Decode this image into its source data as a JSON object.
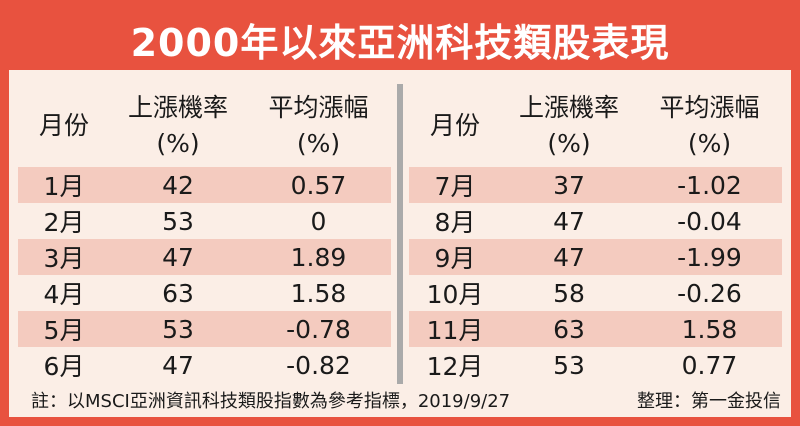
{
  "title": "2000年以來亞洲科技類股表現",
  "chart_data": {
    "type": "table",
    "title": "2000年以來亞洲科技類股表現",
    "columns": [
      {
        "line1": "月份",
        "line2": ""
      },
      {
        "line1": "上漲機率",
        "line2": "(%)"
      },
      {
        "line1": "平均漲幅",
        "line2": "(%)"
      }
    ],
    "rows": [
      {
        "month": "1月",
        "up_rate": "42",
        "avg_gain": "0.57"
      },
      {
        "month": "2月",
        "up_rate": "53",
        "avg_gain": "0"
      },
      {
        "month": "3月",
        "up_rate": "47",
        "avg_gain": "1.89"
      },
      {
        "month": "4月",
        "up_rate": "63",
        "avg_gain": "1.58"
      },
      {
        "month": "5月",
        "up_rate": "53",
        "avg_gain": "-0.78"
      },
      {
        "month": "6月",
        "up_rate": "47",
        "avg_gain": "-0.82"
      },
      {
        "month": "7月",
        "up_rate": "37",
        "avg_gain": "-1.02"
      },
      {
        "month": "8月",
        "up_rate": "47",
        "avg_gain": "-0.04"
      },
      {
        "month": "9月",
        "up_rate": "47",
        "avg_gain": "-1.99"
      },
      {
        "month": "10月",
        "up_rate": "58",
        "avg_gain": "-0.26"
      },
      {
        "month": "11月",
        "up_rate": "63",
        "avg_gain": "1.58"
      },
      {
        "month": "12月",
        "up_rate": "53",
        "avg_gain": "0.77"
      }
    ]
  },
  "footer": {
    "note": "註：以MSCI亞洲資訊科技類股指數為參考指標，2019/9/27",
    "source": "整理：第一金投信"
  },
  "colors": {
    "frame": "#e8523f",
    "background": "#fbeee6",
    "stripe": "#f4cbbf",
    "divider": "#aaaaaa"
  }
}
